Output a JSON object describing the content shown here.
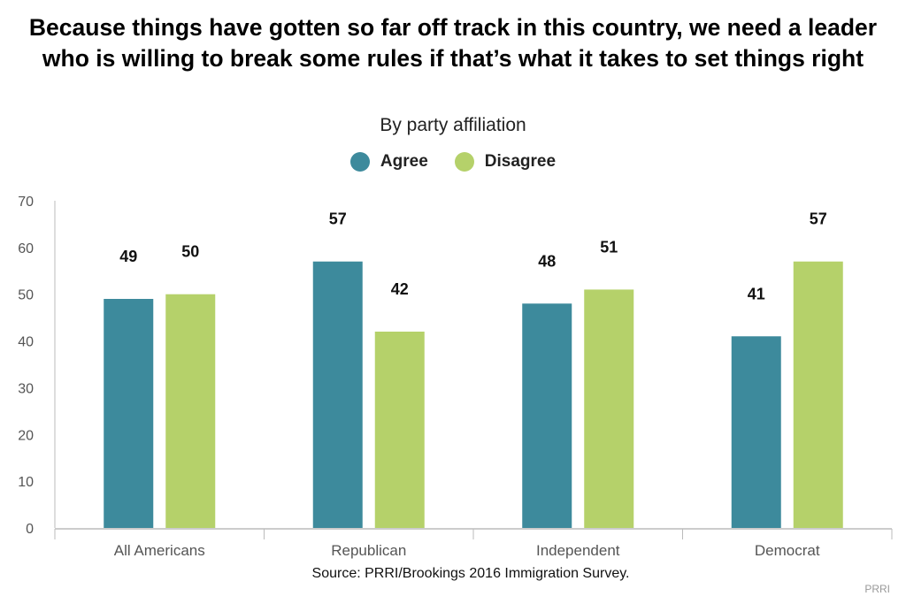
{
  "chart_data": {
    "type": "bar",
    "title": "Because things have gotten so far off track in this country, we need a leader who is willing to break some rules if that’s what it takes to set things right",
    "subtitle": "By party affiliation",
    "categories": [
      "All Americans",
      "Republican",
      "Independent",
      "Democrat"
    ],
    "series": [
      {
        "name": "Agree",
        "color": "#3d8a9c",
        "values": [
          49,
          57,
          48,
          41
        ]
      },
      {
        "name": "Disagree",
        "color": "#b5d16a",
        "values": [
          50,
          42,
          51,
          57
        ]
      }
    ],
    "ylim": [
      0,
      70
    ],
    "yticks": [
      0,
      10,
      20,
      30,
      40,
      50,
      60,
      70
    ],
    "grid": false,
    "legend": "top-center",
    "xlabel": "",
    "ylabel": ""
  },
  "source": "Source: PRRI/Brookings 2016 Immigration Survey.",
  "credit": "PRRI"
}
